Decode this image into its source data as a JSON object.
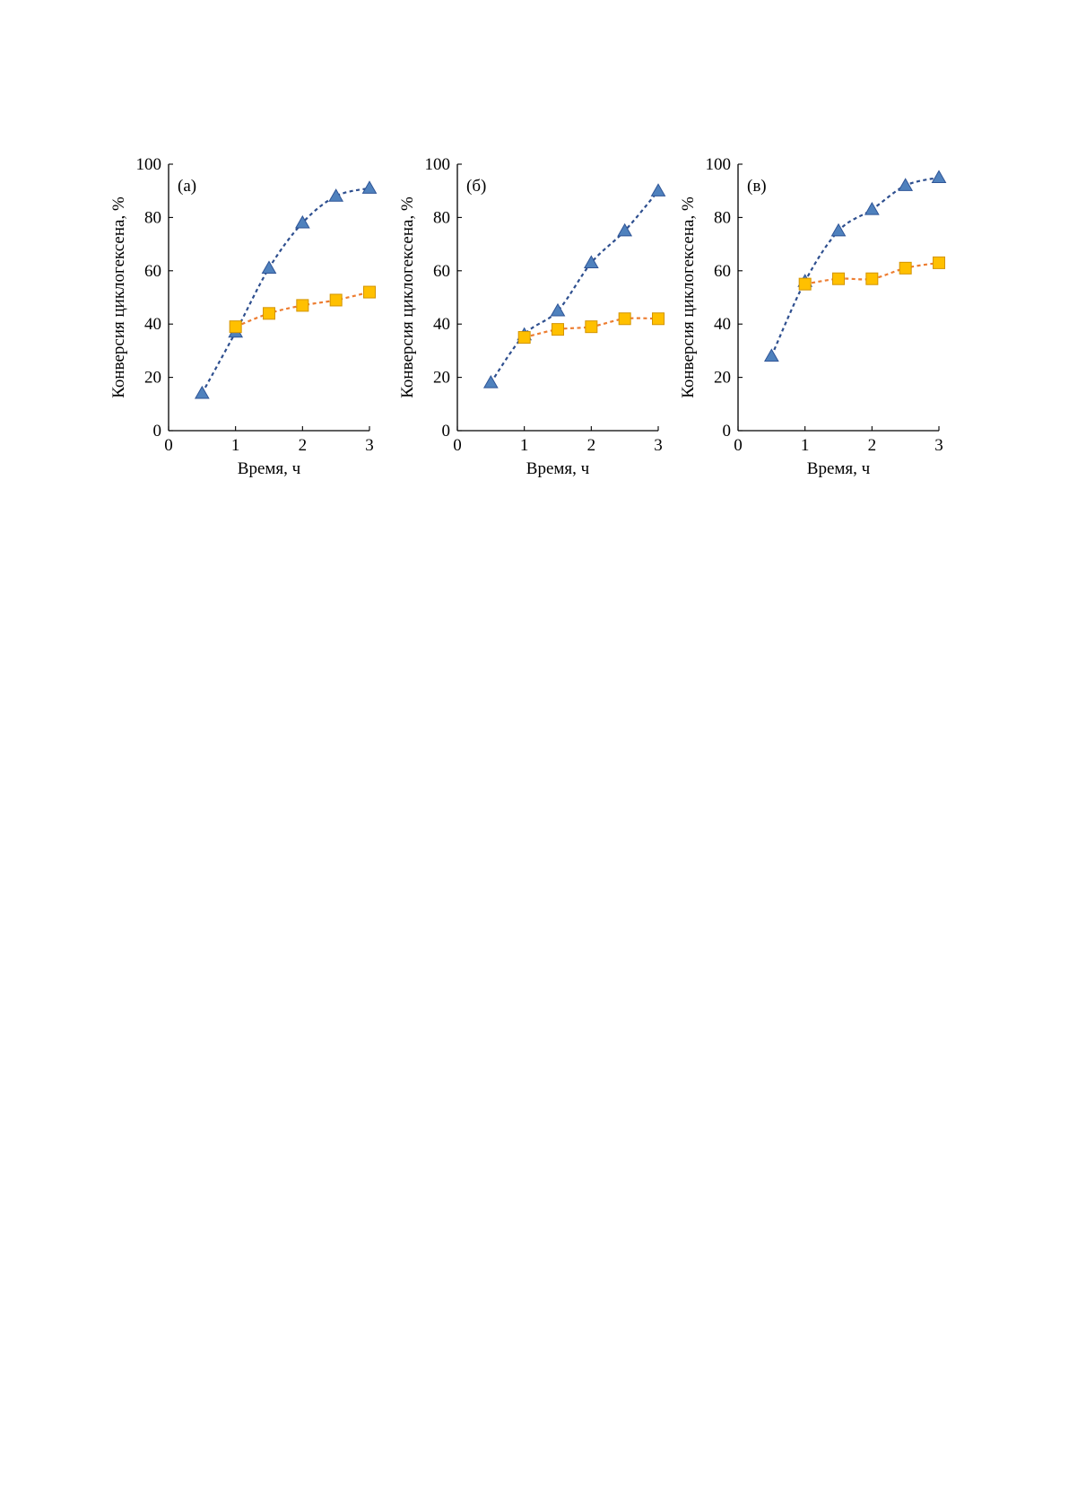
{
  "figure": {
    "panels": [
      {
        "chart_data": {
          "type": "scatter",
          "panel_label": "(а)",
          "xlabel": "Время, ч",
          "ylabel": "Конверсия циклогексена, %",
          "xlim": [
            0,
            3
          ],
          "ylim": [
            0,
            100
          ],
          "xticks": [
            "0",
            "1",
            "2",
            "3"
          ],
          "yticks": [
            "0",
            "20",
            "40",
            "60",
            "80",
            "100"
          ],
          "grid": false,
          "series": [
            {
              "marker": "triangle",
              "color": "#4f81bd",
              "line_color": "#2e4f8f",
              "x": [
                0.5,
                1,
                1.5,
                2,
                2.5,
                3
              ],
              "y": [
                14,
                37,
                61,
                78,
                88,
                91
              ]
            },
            {
              "marker": "square",
              "color": "#ffc000",
              "line_color": "#ed7d31",
              "x": [
                1,
                1.5,
                2,
                2.5,
                3
              ],
              "y": [
                39,
                44,
                47,
                49,
                52
              ]
            }
          ]
        }
      },
      {
        "chart_data": {
          "type": "scatter",
          "panel_label": "(б)",
          "xlabel": "Время, ч",
          "ylabel": "Конверсия циклогексена, %",
          "xlim": [
            0,
            3
          ],
          "ylim": [
            0,
            100
          ],
          "xticks": [
            "0",
            "1",
            "2",
            "3"
          ],
          "yticks": [
            "0",
            "20",
            "40",
            "60",
            "80",
            "100"
          ],
          "grid": false,
          "series": [
            {
              "marker": "triangle",
              "color": "#4f81bd",
              "line_color": "#2e4f8f",
              "x": [
                0.5,
                1,
                1.5,
                2,
                2.5,
                3
              ],
              "y": [
                18,
                36,
                45,
                63,
                75,
                90
              ]
            },
            {
              "marker": "square",
              "color": "#ffc000",
              "line_color": "#ed7d31",
              "x": [
                1,
                1.5,
                2,
                2.5,
                3
              ],
              "y": [
                35,
                38,
                39,
                42,
                42
              ]
            }
          ]
        }
      },
      {
        "chart_data": {
          "type": "scatter",
          "panel_label": "(в)",
          "xlabel": "Время, ч",
          "ylabel": "Конверсия циклогексена, %",
          "xlim": [
            0,
            3
          ],
          "ylim": [
            0,
            100
          ],
          "xticks": [
            "0",
            "1",
            "2",
            "3"
          ],
          "yticks": [
            "0",
            "20",
            "40",
            "60",
            "80",
            "100"
          ],
          "grid": false,
          "series": [
            {
              "marker": "triangle",
              "color": "#4f81bd",
              "line_color": "#2e4f8f",
              "x": [
                0.5,
                1,
                1.5,
                2,
                2.5,
                3
              ],
              "y": [
                28,
                56,
                75,
                83,
                92,
                95
              ]
            },
            {
              "marker": "square",
              "color": "#ffc000",
              "line_color": "#ed7d31",
              "x": [
                1,
                1.5,
                2,
                2.5,
                3
              ],
              "y": [
                55,
                57,
                57,
                61,
                63
              ]
            }
          ]
        }
      }
    ]
  }
}
